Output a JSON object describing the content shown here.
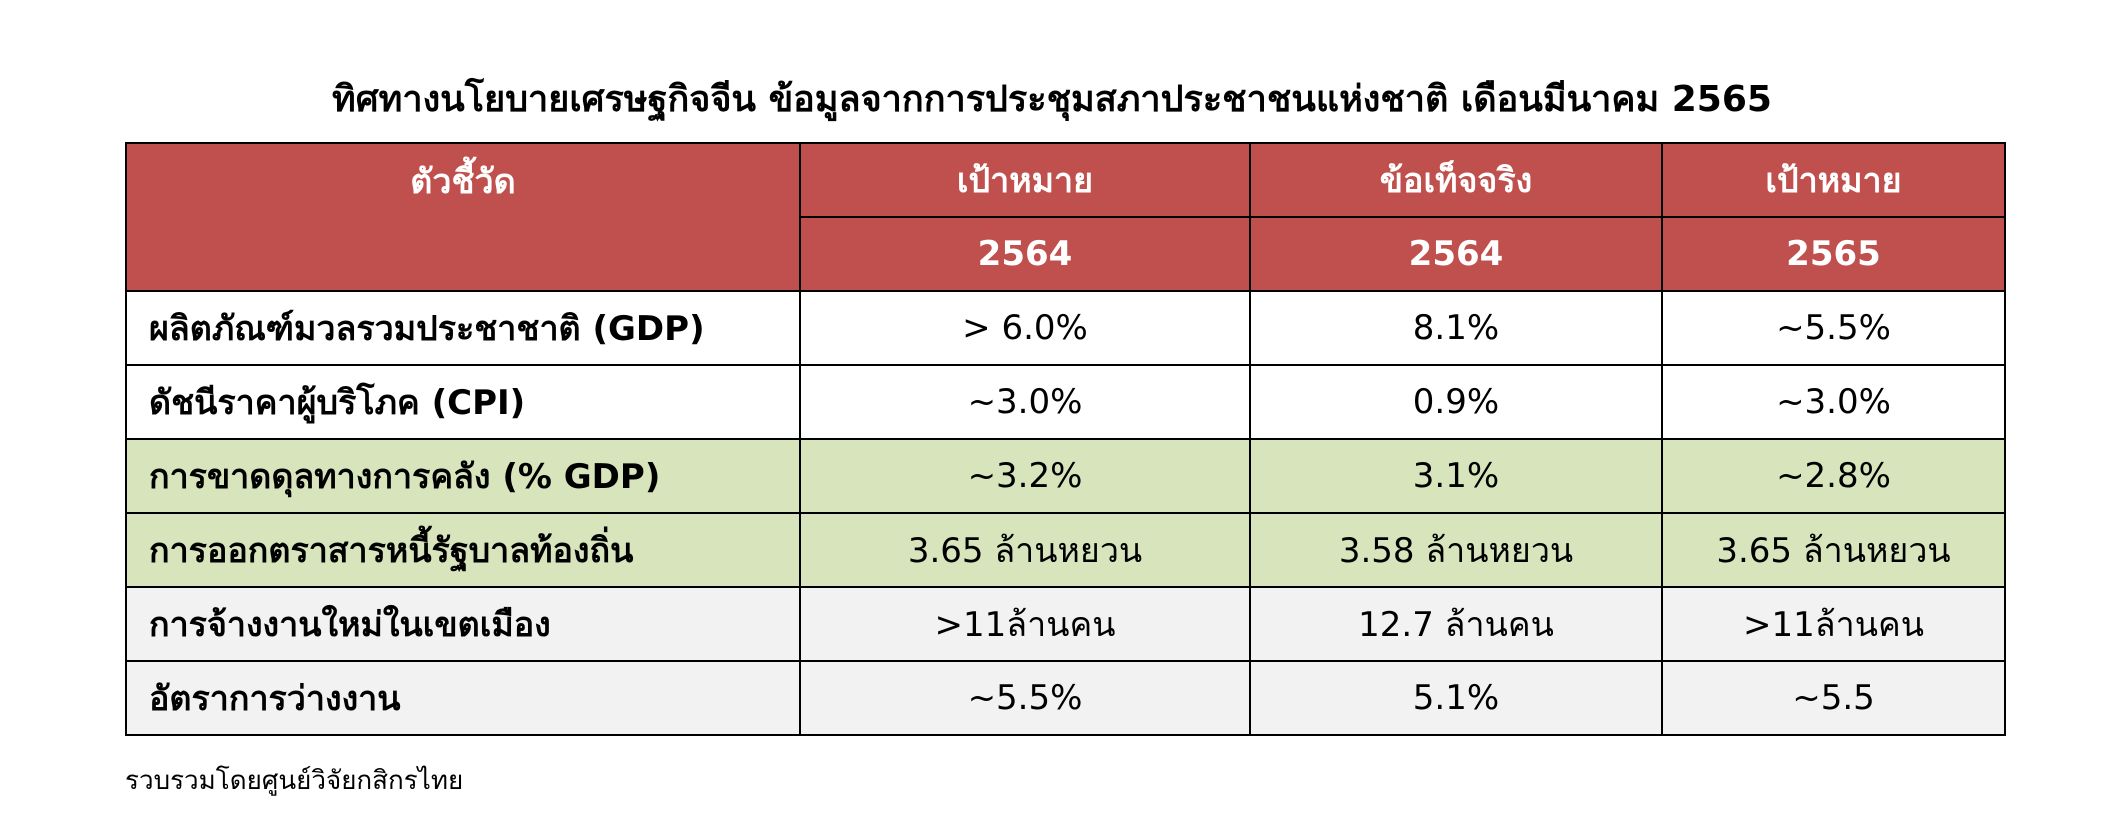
{
  "title": "ทิศทางนโยบายเศรษฐกิจจีน ข้อมูลจากการประชุมสภาประชาชนแห่งชาติ เดือนมีนาคม 2565",
  "table": {
    "header": {
      "label": "ตัวชี้วัด",
      "columns": [
        {
          "top": "เป้าหมาย",
          "bottom": "2564"
        },
        {
          "top": "ข้อเท็จจริง",
          "bottom": "2564"
        },
        {
          "top": "เป้าหมาย",
          "bottom": "2565"
        }
      ]
    },
    "rows": [
      [
        "ผลิตภัณฑ์มวลรวมประชาชาติ (GDP)",
        "> 6.0%",
        "8.1%",
        "~5.5%"
      ],
      [
        "ดัชนีราคาผู้บริโภค (CPI)",
        "~3.0%",
        "0.9%",
        "~3.0%"
      ],
      [
        "การขาดดุลทางการคลัง (% GDP)",
        "~3.2%",
        "3.1%",
        "~2.8%"
      ],
      [
        "การออกตราสารหนี้รัฐบาลท้องถิ่น",
        "3.65 ล้านหยวน",
        "3.58 ล้านหยวน",
        "3.65 ล้านหยวน"
      ],
      [
        "การจ้างงานใหม่ในเขตเมือง",
        ">11ล้านคน",
        "12.7 ล้านคน",
        ">11ล้านคน"
      ],
      [
        "อัตราการว่างงาน",
        "~5.5%",
        "5.1%",
        "~5.5"
      ]
    ]
  },
  "footnote": "รวบรวมโดยศูนย์วิจัยกสิกรไทย"
}
